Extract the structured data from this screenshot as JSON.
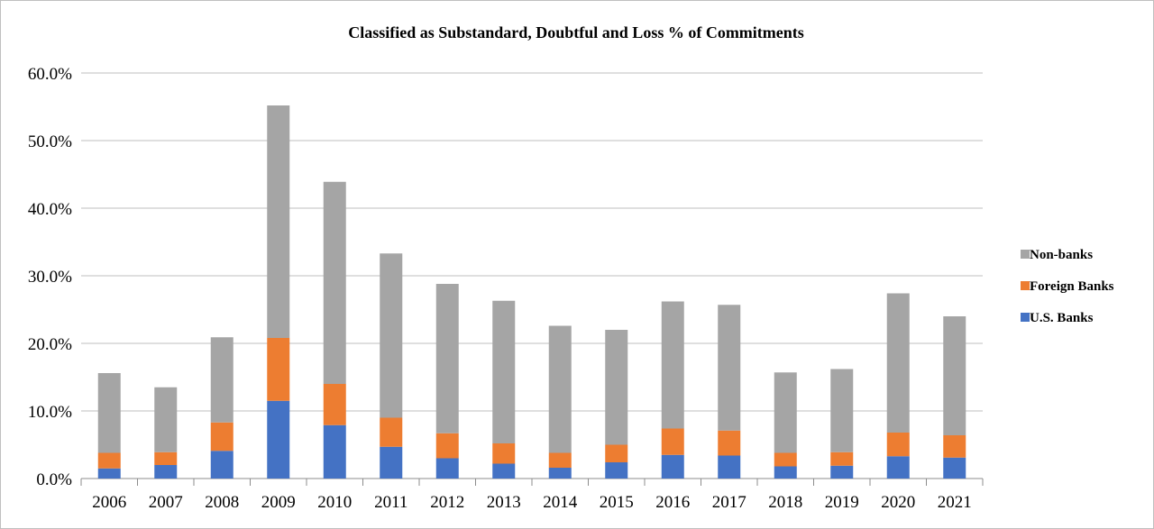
{
  "chart_data": {
    "type": "bar",
    "stacked": true,
    "title": "Classified as Substandard, Doubtful and Loss % of Commitments",
    "xlabel": "",
    "ylabel": "",
    "ylim": [
      0,
      60
    ],
    "yticks": [
      "0.0%",
      "10.0%",
      "20.0%",
      "30.0%",
      "40.0%",
      "50.0%",
      "60.0%"
    ],
    "ytick_values": [
      0,
      10,
      20,
      30,
      40,
      50,
      60
    ],
    "grid": true,
    "legend_position": "right",
    "categories": [
      "2006",
      "2007",
      "2008",
      "2009",
      "2010",
      "2011",
      "2012",
      "2013",
      "2014",
      "2015",
      "2016",
      "2017",
      "2018",
      "2019",
      "2020",
      "2021"
    ],
    "series": [
      {
        "name": "U.S. Banks",
        "color": "#4472c4",
        "values": [
          1.5,
          2.0,
          4.1,
          11.5,
          7.9,
          4.7,
          3.0,
          2.2,
          1.6,
          2.4,
          3.5,
          3.4,
          1.8,
          1.9,
          3.3,
          3.1
        ]
      },
      {
        "name": "Foreign Banks",
        "color": "#ed7d31",
        "values": [
          2.3,
          1.9,
          4.2,
          9.3,
          6.1,
          4.3,
          3.7,
          3.0,
          2.2,
          2.6,
          3.9,
          3.7,
          2.0,
          2.0,
          3.5,
          3.3
        ]
      },
      {
        "name": "Non-banks",
        "color": "#a5a5a5",
        "values": [
          11.8,
          9.6,
          12.6,
          34.4,
          29.9,
          24.3,
          22.1,
          21.1,
          18.8,
          17.0,
          18.8,
          18.6,
          11.9,
          12.3,
          20.6,
          17.6
        ]
      }
    ],
    "legend_order": [
      "Non-banks",
      "Foreign Banks",
      "U.S. Banks"
    ]
  }
}
